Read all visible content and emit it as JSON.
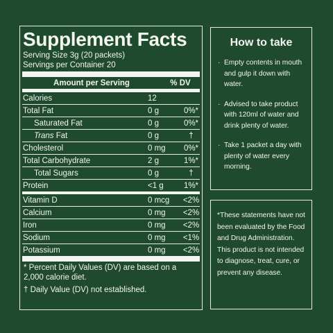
{
  "facts": {
    "title": "Supplement Facts",
    "serving_size": "Serving Size 3g (20 packets)",
    "servings_per": "Servings per Container 20",
    "header_amount": "Amount per Serving",
    "header_dv": "% DV",
    "rows": [
      {
        "name": "Calories",
        "amount": "12",
        "dv": ""
      },
      {
        "name": "Total Fat",
        "amount": "0 g",
        "dv": "0%*"
      },
      {
        "name": "Saturated Fat",
        "amount": "0 g",
        "dv": "0%*"
      },
      {
        "name_italic": "Trans",
        "name_rest": " Fat",
        "amount": "0 g",
        "dv": "†"
      },
      {
        "name": "Cholesterol",
        "amount": "0 mg",
        "dv": "0%*"
      },
      {
        "name": "Total Carbohydrate",
        "amount": "2 g",
        "dv": "1%*"
      },
      {
        "name": "Total Sugars",
        "amount": "0 g",
        "dv": "†"
      },
      {
        "name": "Protein",
        "amount": "<1 g",
        "dv": "1%*"
      },
      {
        "name": "Vitamin D",
        "amount": "0 mcg",
        "dv": "<2%"
      },
      {
        "name": "Calcium",
        "amount": "0 mg",
        "dv": "<2%"
      },
      {
        "name": "Iron",
        "amount": "0 mg",
        "dv": "<2%"
      },
      {
        "name": "Sodium",
        "amount": "0 mg",
        "dv": "<1%"
      },
      {
        "name": "Potassium",
        "amount": "0 mg",
        "dv": "<2%"
      }
    ],
    "footnote_1": "* Percent Daily Values (DV) are based on a 2,000 calorie diet.",
    "footnote_2": "† Daily Value (DV) not established."
  },
  "howto": {
    "title": "How to take",
    "bullet": "·",
    "items": [
      "Empty contents in mouth and gulp it down with water.",
      "Advised to take product with 120ml of water and drink plenty of water.",
      "Take 1 packet a day with plenty of water every morning."
    ]
  },
  "disclaimer": "*These statements have not been evaluated by the Food and Drug Administration. This product is not intended to diagnose, treat, cure, or prevent any disease.",
  "colors": {
    "background": "#1f4a2e",
    "text": "#f3f5f1"
  }
}
